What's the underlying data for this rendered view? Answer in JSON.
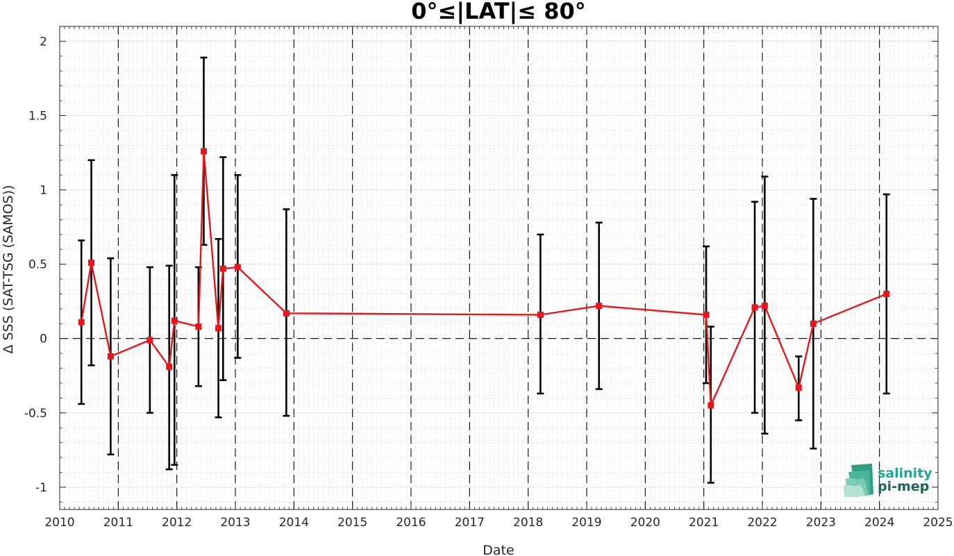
{
  "chart_data": {
    "type": "line",
    "title": "0°≤|LAT|≤ 80°",
    "xlabel": "Date",
    "ylabel": "Δ SSS (SAT-TSG (SAMOS))",
    "xlim": [
      2010,
      2025
    ],
    "ylim": [
      -1.15,
      2.1
    ],
    "x_ticks": [
      2010,
      2011,
      2012,
      2013,
      2014,
      2015,
      2016,
      2017,
      2018,
      2019,
      2020,
      2021,
      2022,
      2023,
      2024,
      2025
    ],
    "x_tick_labels": [
      "2010",
      "2011",
      "2012",
      "2013",
      "2014",
      "2015",
      "2016",
      "2017",
      "2018",
      "2019",
      "2020",
      "2021",
      "2022",
      "2023",
      "2024",
      "2025"
    ],
    "y_ticks": [
      -1,
      -0.5,
      0,
      0.5,
      1,
      1.5,
      2
    ],
    "y_tick_labels": [
      "-1",
      "-0.5",
      "0",
      "0.5",
      "1",
      "1.5",
      "2"
    ],
    "grid": true,
    "minor_grid": true,
    "year_boundary_lines": true,
    "zero_line": true,
    "colors": {
      "series": "#e8161b",
      "error_bars": "#000000",
      "dashed": "#000000",
      "logo": "#1aa891"
    },
    "series": [
      {
        "x": [
          2010.37,
          2010.54,
          2010.87,
          2011.54,
          2011.87,
          2011.96,
          2012.37,
          2012.46,
          2012.71,
          2012.79,
          2013.04,
          2013.87,
          2018.21,
          2019.21,
          2021.04,
          2021.12,
          2021.87,
          2022.04,
          2022.62,
          2022.87,
          2024.12
        ],
        "y": [
          0.11,
          0.51,
          -0.12,
          -0.01,
          -0.19,
          0.12,
          0.08,
          1.26,
          0.07,
          0.47,
          0.48,
          0.17,
          0.16,
          0.22,
          0.16,
          -0.45,
          0.21,
          0.22,
          -0.33,
          0.1,
          0.3
        ],
        "err_low": [
          -0.44,
          -0.18,
          -0.78,
          -0.5,
          -0.88,
          -0.85,
          -0.32,
          0.63,
          -0.53,
          -0.28,
          -0.13,
          -0.52,
          -0.37,
          -0.34,
          -0.3,
          -0.97,
          -0.5,
          -0.64,
          -0.55,
          -0.74,
          -0.37
        ],
        "err_high": [
          0.66,
          1.2,
          0.54,
          0.48,
          0.49,
          1.1,
          0.48,
          1.89,
          0.67,
          1.22,
          1.1,
          0.87,
          0.7,
          0.78,
          0.62,
          0.08,
          0.92,
          1.09,
          -0.12,
          0.94,
          0.97
        ]
      }
    ]
  },
  "logo": {
    "line1": "salinity",
    "line2": "pi-mep"
  }
}
